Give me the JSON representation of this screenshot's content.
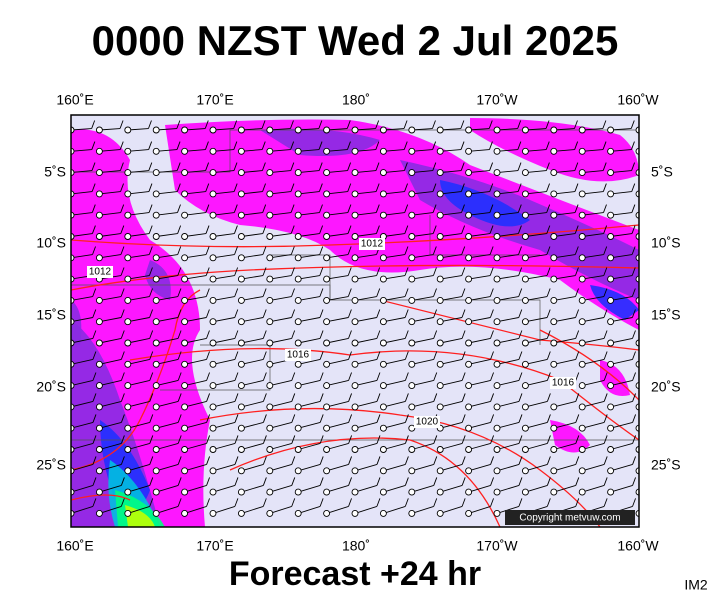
{
  "header": {
    "title": "0000 NZST Wed 2 Jul 2025"
  },
  "footer": {
    "subtitle": "Forecast +24 hr",
    "image_id": "IM2"
  },
  "map": {
    "lon_labels": [
      "160˚E",
      "170˚E",
      "180˚",
      "170˚W",
      "160˚W"
    ],
    "lat_labels": [
      "5˚S",
      "10˚S",
      "15˚S",
      "20˚S",
      "25˚S"
    ],
    "isobar_labels": [
      "1012",
      "1012",
      "1016",
      "1020",
      "1016"
    ],
    "copyright": "Copyright metvuw.com"
  }
}
